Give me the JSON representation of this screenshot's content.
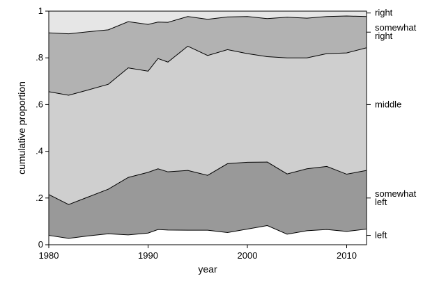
{
  "chart_data": {
    "type": "area",
    "stacked": "cumulative",
    "xlabel": "year",
    "ylabel": "cumulative proportion",
    "xlim": [
      1980,
      2012
    ],
    "ylim": [
      0,
      1
    ],
    "x_ticks": [
      1980,
      1990,
      2000,
      2010
    ],
    "x_tick_labels": [
      "1980",
      "1990",
      "2000",
      "2010"
    ],
    "y_ticks": [
      0,
      0.2,
      0.4,
      0.6,
      0.8,
      1
    ],
    "y_tick_labels": [
      "0",
      ".2",
      ".4",
      ".6",
      ".8",
      "1"
    ],
    "grid": false,
    "x": [
      1980,
      1982,
      1984,
      1986,
      1988,
      1990,
      1991,
      1992,
      1994,
      1996,
      1998,
      2000,
      2002,
      2004,
      2006,
      2008,
      2010,
      2012
    ],
    "series": [
      {
        "name": "left",
        "color": "#ffffff",
        "cumulative": [
          0.04,
          0.027,
          0.038,
          0.047,
          0.042,
          0.05,
          0.065,
          0.063,
          0.062,
          0.062,
          0.052,
          0.067,
          0.082,
          0.045,
          0.06,
          0.065,
          0.057,
          0.067
        ]
      },
      {
        "name": "somewhat left",
        "color": "#999999",
        "cumulative": [
          0.215,
          0.172,
          0.205,
          0.238,
          0.288,
          0.31,
          0.325,
          0.312,
          0.318,
          0.297,
          0.347,
          0.353,
          0.354,
          0.303,
          0.325,
          0.335,
          0.302,
          0.318
        ]
      },
      {
        "name": "middle",
        "color": "#cfcfcf",
        "cumulative": [
          0.655,
          0.64,
          0.663,
          0.687,
          0.757,
          0.743,
          0.797,
          0.782,
          0.85,
          0.81,
          0.835,
          0.818,
          0.805,
          0.8,
          0.8,
          0.818,
          0.821,
          0.843
        ]
      },
      {
        "name": "somewhat right",
        "color": "#b2b2b2",
        "cumulative": [
          0.907,
          0.903,
          0.912,
          0.92,
          0.955,
          0.943,
          0.953,
          0.952,
          0.977,
          0.965,
          0.975,
          0.977,
          0.968,
          0.974,
          0.97,
          0.977,
          0.979,
          0.977
        ]
      },
      {
        "name": "right",
        "color": "#e6e6e6",
        "cumulative": [
          1,
          1,
          1,
          1,
          1,
          1,
          1,
          1,
          1,
          1,
          1,
          1,
          1,
          1,
          1,
          1,
          1,
          1
        ]
      }
    ],
    "right_labels": [
      {
        "lines": [
          "right"
        ],
        "at": 0.992
      },
      {
        "lines": [
          "somewhat",
          "right"
        ],
        "at": 0.91
      },
      {
        "lines": [
          "middle"
        ],
        "at": 0.6
      },
      {
        "lines": [
          "somewhat",
          "left"
        ],
        "at": 0.2
      },
      {
        "lines": [
          "left"
        ],
        "at": 0.04
      }
    ]
  }
}
